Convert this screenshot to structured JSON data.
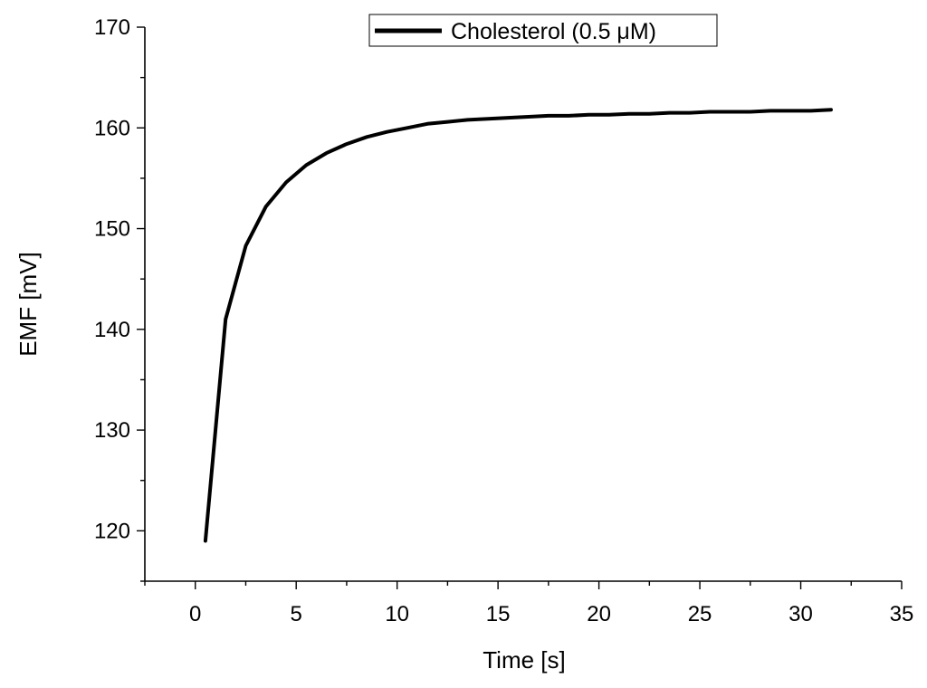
{
  "chart_data": {
    "type": "line",
    "xlabel": "Time [s]",
    "ylabel": "EMF [mV]",
    "xlim": [
      -2.5,
      35
    ],
    "ylim": [
      115,
      170
    ],
    "x_ticks": [
      0,
      5,
      10,
      15,
      20,
      25,
      30,
      35
    ],
    "y_ticks": [
      120,
      130,
      140,
      150,
      160,
      170
    ],
    "x_minor_step": 2.5,
    "y_minor_step": 5,
    "grid": false,
    "legend_position": "top-center",
    "series": [
      {
        "name": "Cholesterol (0.5 μM)",
        "color": "#000000",
        "x": [
          0.5,
          1.5,
          2.5,
          3.5,
          4.5,
          5.5,
          6.5,
          7.5,
          8.5,
          9.5,
          10.5,
          11.5,
          12.5,
          13.5,
          14.5,
          15.5,
          16.5,
          17.5,
          18.5,
          19.5,
          20.5,
          21.5,
          22.5,
          23.5,
          24.5,
          25.5,
          26.5,
          27.5,
          28.5,
          29.5,
          30.5,
          31.5
        ],
        "y": [
          119.0,
          141.0,
          148.3,
          152.2,
          154.6,
          156.3,
          157.5,
          158.4,
          159.1,
          159.6,
          160.0,
          160.4,
          160.6,
          160.8,
          160.9,
          161.0,
          161.1,
          161.2,
          161.2,
          161.3,
          161.3,
          161.4,
          161.4,
          161.5,
          161.5,
          161.6,
          161.6,
          161.6,
          161.7,
          161.7,
          161.7,
          161.8
        ]
      }
    ]
  }
}
